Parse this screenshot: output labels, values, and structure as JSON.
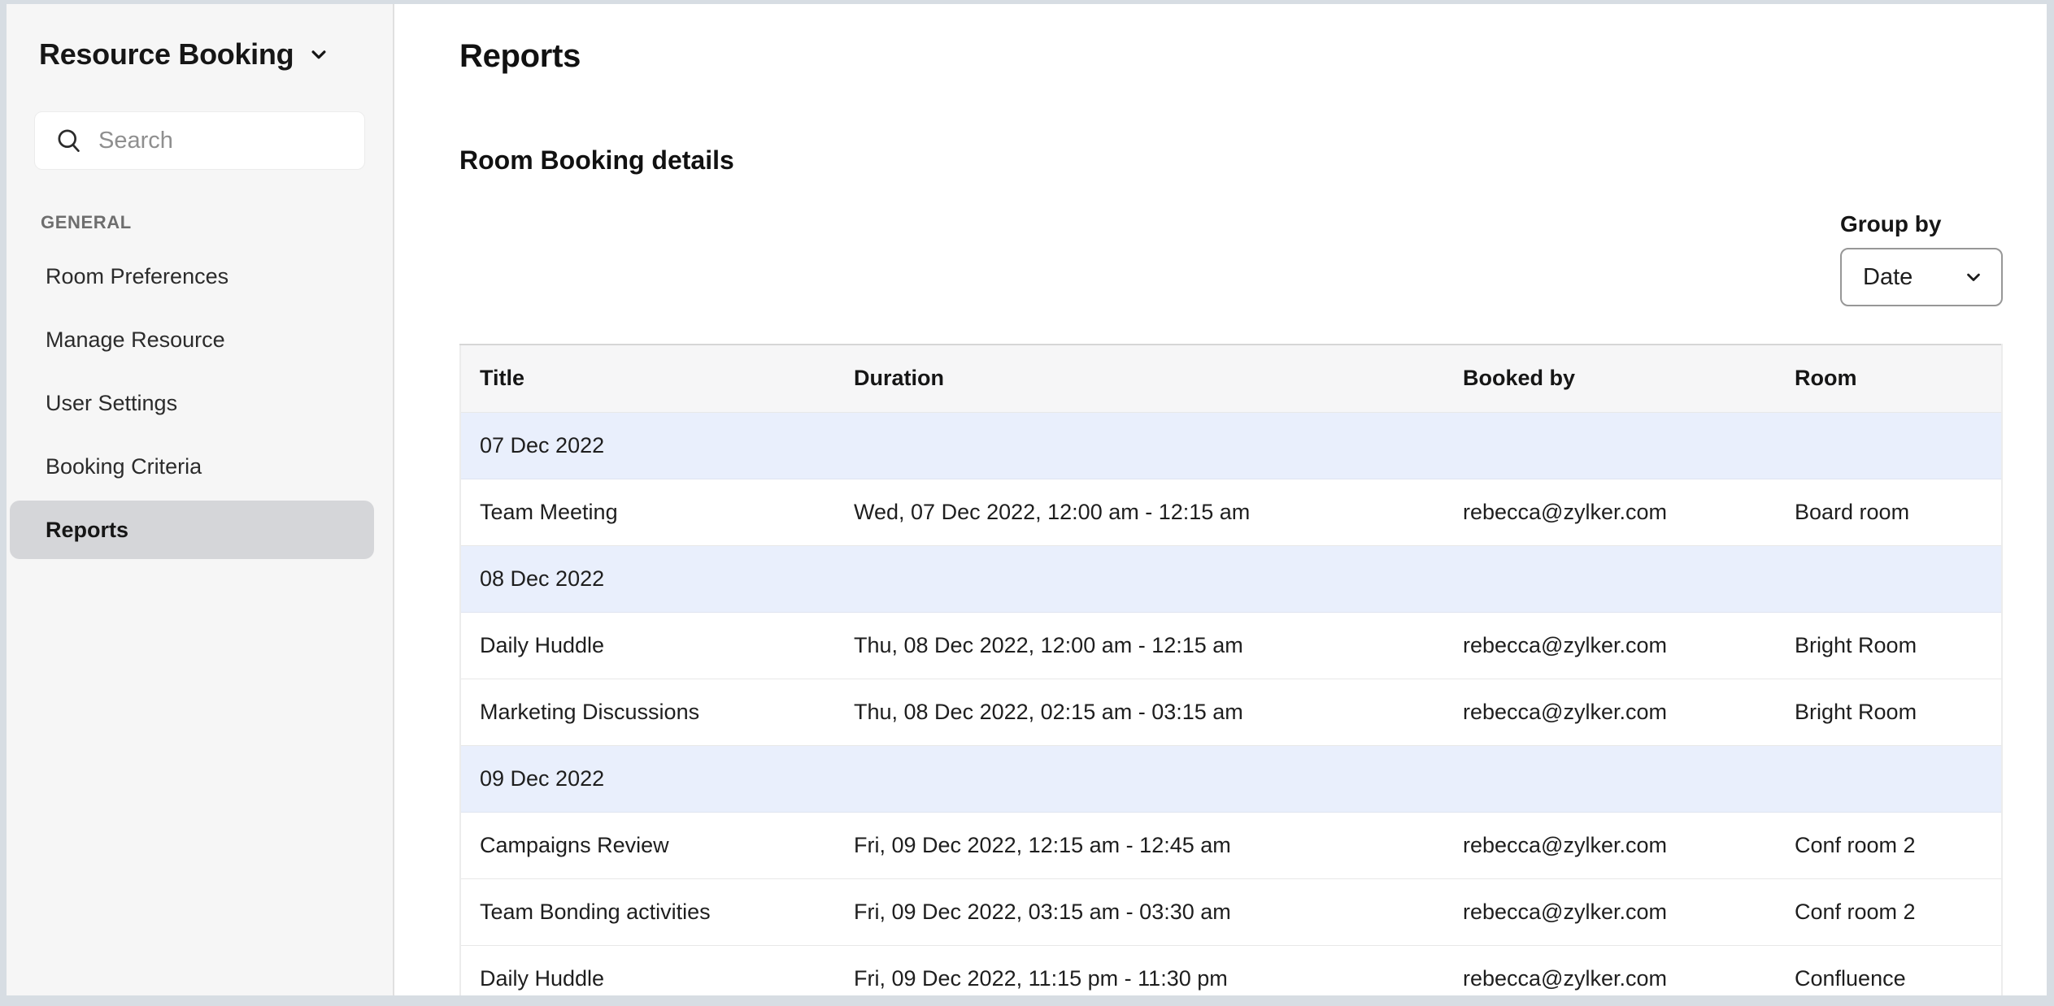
{
  "app": {
    "title": "Resource Booking"
  },
  "sidebar": {
    "search": {
      "placeholder": "Search",
      "value": ""
    },
    "section_label": "GENERAL",
    "items": [
      {
        "label": "Room Preferences",
        "active": false
      },
      {
        "label": "Manage Resource",
        "active": false
      },
      {
        "label": "User Settings",
        "active": false
      },
      {
        "label": "Booking Criteria",
        "active": false
      },
      {
        "label": "Reports",
        "active": true
      }
    ]
  },
  "main": {
    "page_title": "Reports",
    "section_title": "Room Booking details",
    "group_by": {
      "label": "Group by",
      "selected": "Date"
    }
  },
  "table": {
    "columns": [
      "Title",
      "Duration",
      "Booked by",
      "Room"
    ],
    "groups": [
      {
        "date": "07 Dec 2022",
        "rows": [
          [
            "Team Meeting",
            "Wed, 07 Dec 2022, 12:00 am - 12:15 am",
            "rebecca@zylker.com",
            "Board room"
          ]
        ]
      },
      {
        "date": "08 Dec 2022",
        "rows": [
          [
            "Daily Huddle",
            "Thu, 08 Dec 2022, 12:00 am - 12:15 am",
            "rebecca@zylker.com",
            "Bright Room"
          ],
          [
            "Marketing Discussions",
            "Thu, 08 Dec 2022, 02:15 am - 03:15 am",
            "rebecca@zylker.com",
            "Bright Room"
          ]
        ]
      },
      {
        "date": "09 Dec 2022",
        "rows": [
          [
            "Campaigns Review",
            "Fri, 09 Dec 2022, 12:15 am - 12:45 am",
            "rebecca@zylker.com",
            "Conf room 2"
          ],
          [
            "Team Bonding activities",
            "Fri, 09 Dec 2022, 03:15 am - 03:30 am",
            "rebecca@zylker.com",
            "Conf room 2"
          ],
          [
            "Daily Huddle",
            "Fri, 09 Dec 2022, 11:15 pm - 11:30 pm",
            "rebecca@zylker.com",
            "Confluence"
          ]
        ]
      }
    ]
  },
  "icons": {
    "app_switcher": "chevron-down-icon",
    "search": "search-icon",
    "group_by": "chevron-down-icon"
  },
  "colors": {
    "frame_border": "#d7dde3",
    "sidebar_bg": "#f6f6f6",
    "active_item_bg": "#d5d6d9",
    "table_header_bg": "#f6f6f7",
    "group_row_bg": "#e9effc",
    "row_border": "#e8e8e8",
    "text": "#1d1d1d"
  }
}
